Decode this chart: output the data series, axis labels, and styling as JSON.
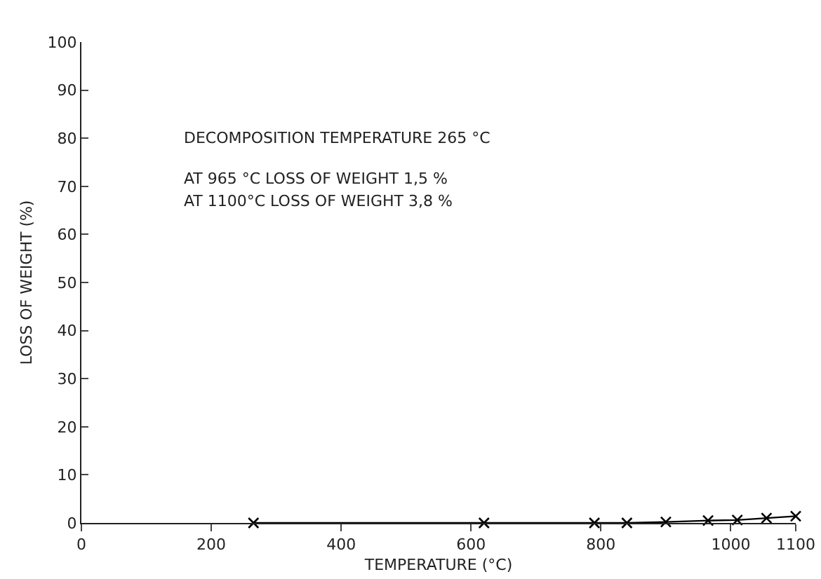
{
  "chart_data": {
    "type": "line",
    "xlabel": "TEMPERATURE (°C)",
    "ylabel": "LOSS OF WEIGHT (%)",
    "annotations": [
      "DECOMPOSITION TEMPERATURE 265 °C",
      "AT 965 °C LOSS OF WEIGHT 1,5 %",
      "AT 1100°C LOSS OF WEIGHT 3,8 %"
    ],
    "x": [
      265,
      620,
      790,
      840,
      900,
      965,
      1010,
      1055,
      1100
    ],
    "series": [
      {
        "color": "#000000",
        "values": [
          0,
          0,
          0,
          0,
          0.2,
          0.5,
          0.6,
          1,
          1.4
        ]
      }
    ],
    "xlim": [
      0,
      1100
    ],
    "xticks": [
      0,
      200,
      400,
      600,
      800,
      1000,
      1100
    ],
    "ylim": [
      0,
      100
    ],
    "yticks": [
      0,
      10,
      20,
      30,
      40,
      50,
      60,
      70,
      80,
      90,
      100
    ],
    "grid": false,
    "marker": "cross",
    "line_style": "solid"
  }
}
